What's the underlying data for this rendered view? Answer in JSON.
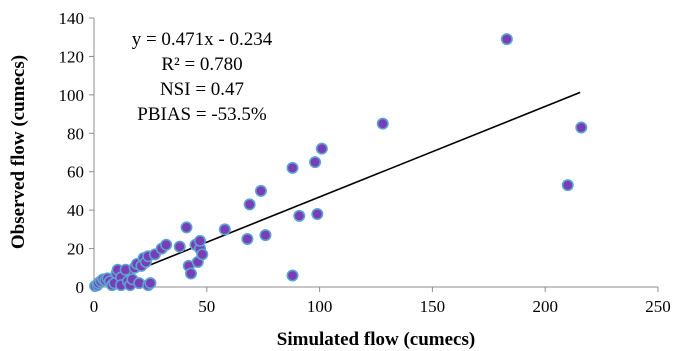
{
  "chart_data": {
    "type": "scatter",
    "title": "",
    "xlabel": "Simulated flow (cumecs)",
    "ylabel": "Observed flow (cumecs)",
    "xlim": [
      0,
      250
    ],
    "ylim": [
      0,
      140
    ],
    "xticks": [
      0,
      50,
      100,
      150,
      200,
      250
    ],
    "yticks": [
      0,
      20,
      40,
      60,
      80,
      100,
      120,
      140
    ],
    "grid": false,
    "legend": "none",
    "marker_fill": "#7a3db8",
    "marker_stroke": "#5ba3d0",
    "trendline_color": "#000000",
    "trendline": {
      "slope": 0.471,
      "intercept": -0.234,
      "x_range": [
        1,
        215.5
      ]
    },
    "annotations": [
      "y = 0.471x - 0.234",
      "R² = 0.780",
      "NSI = 0.47",
      "PBIAS = -53.5%"
    ],
    "points": [
      {
        "x": 0.5,
        "y": 0.5
      },
      {
        "x": 1.5,
        "y": 1
      },
      {
        "x": 2,
        "y": 2
      },
      {
        "x": 3,
        "y": 3
      },
      {
        "x": 4,
        "y": 4
      },
      {
        "x": 5,
        "y": 3.5
      },
      {
        "x": 6,
        "y": 4.5
      },
      {
        "x": 7,
        "y": 3
      },
      {
        "x": 8,
        "y": 1
      },
      {
        "x": 9,
        "y": 2
      },
      {
        "x": 10,
        "y": 7
      },
      {
        "x": 10.5,
        "y": 9
      },
      {
        "x": 12,
        "y": 5
      },
      {
        "x": 12,
        "y": 1
      },
      {
        "x": 14,
        "y": 9
      },
      {
        "x": 15,
        "y": 3
      },
      {
        "x": 16,
        "y": 1
      },
      {
        "x": 17,
        "y": 4
      },
      {
        "x": 18,
        "y": 10
      },
      {
        "x": 19,
        "y": 12
      },
      {
        "x": 20,
        "y": 2
      },
      {
        "x": 21,
        "y": 11
      },
      {
        "x": 22,
        "y": 15
      },
      {
        "x": 23,
        "y": 13
      },
      {
        "x": 24,
        "y": 16
      },
      {
        "x": 24,
        "y": 1
      },
      {
        "x": 25,
        "y": 2
      },
      {
        "x": 27,
        "y": 17
      },
      {
        "x": 30,
        "y": 20
      },
      {
        "x": 32,
        "y": 22
      },
      {
        "x": 38,
        "y": 21
      },
      {
        "x": 41,
        "y": 31
      },
      {
        "x": 42,
        "y": 11
      },
      {
        "x": 43,
        "y": 7
      },
      {
        "x": 45,
        "y": 22
      },
      {
        "x": 46,
        "y": 13
      },
      {
        "x": 47,
        "y": 20
      },
      {
        "x": 47,
        "y": 24
      },
      {
        "x": 48,
        "y": 17
      },
      {
        "x": 58,
        "y": 30
      },
      {
        "x": 68,
        "y": 25
      },
      {
        "x": 69,
        "y": 43
      },
      {
        "x": 74,
        "y": 50
      },
      {
        "x": 76,
        "y": 27
      },
      {
        "x": 88,
        "y": 62
      },
      {
        "x": 88,
        "y": 6
      },
      {
        "x": 91,
        "y": 37
      },
      {
        "x": 98,
        "y": 65
      },
      {
        "x": 99,
        "y": 38
      },
      {
        "x": 101,
        "y": 72
      },
      {
        "x": 128,
        "y": 85
      },
      {
        "x": 183,
        "y": 129
      },
      {
        "x": 210,
        "y": 53
      },
      {
        "x": 216,
        "y": 83
      }
    ]
  }
}
